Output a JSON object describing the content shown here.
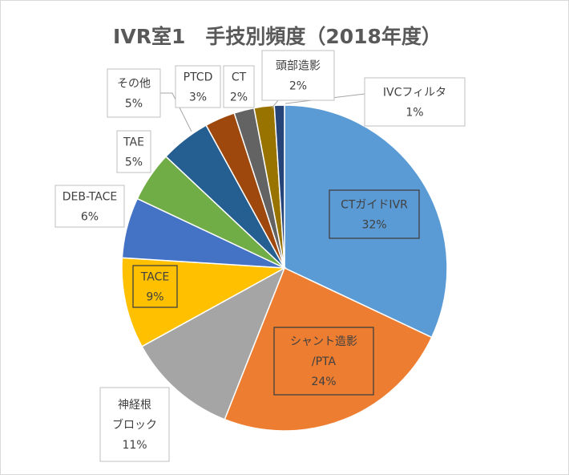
{
  "chart_data": {
    "type": "pie",
    "title": "IVR室1　手技別頻度（2018年度）",
    "slices": [
      {
        "label": "CTガイドIVR",
        "percent": "32%",
        "value": 32,
        "color": "#5b9bd5"
      },
      {
        "label": "シャント造影/PTA",
        "label_lines": [
          "シャント造影",
          "/PTA"
        ],
        "percent": "24%",
        "value": 24,
        "color": "#ed7d31"
      },
      {
        "label": "神経根ブロック",
        "label_lines": [
          "神経根",
          "ブロック"
        ],
        "percent": "11%",
        "value": 11,
        "color": "#a5a5a5"
      },
      {
        "label": "TACE",
        "percent": "9%",
        "value": 9,
        "color": "#ffc000"
      },
      {
        "label": "DEB-TACE",
        "percent": "6%",
        "value": 6,
        "color": "#4472c4"
      },
      {
        "label": "TAE",
        "percent": "5%",
        "value": 5,
        "color": "#70ad47"
      },
      {
        "label": "その他",
        "percent": "5%",
        "value": 5,
        "color": "#255e91"
      },
      {
        "label": "PTCD",
        "percent": "3%",
        "value": 3,
        "color": "#9e480e"
      },
      {
        "label": "CT",
        "percent": "2%",
        "value": 2,
        "color": "#636363"
      },
      {
        "label": "頭部造影",
        "percent": "2%",
        "value": 2,
        "color": "#997300"
      },
      {
        "label": "IVCフィルタ",
        "percent": "1%",
        "value": 1,
        "color": "#264478"
      }
    ],
    "legend": "none"
  }
}
